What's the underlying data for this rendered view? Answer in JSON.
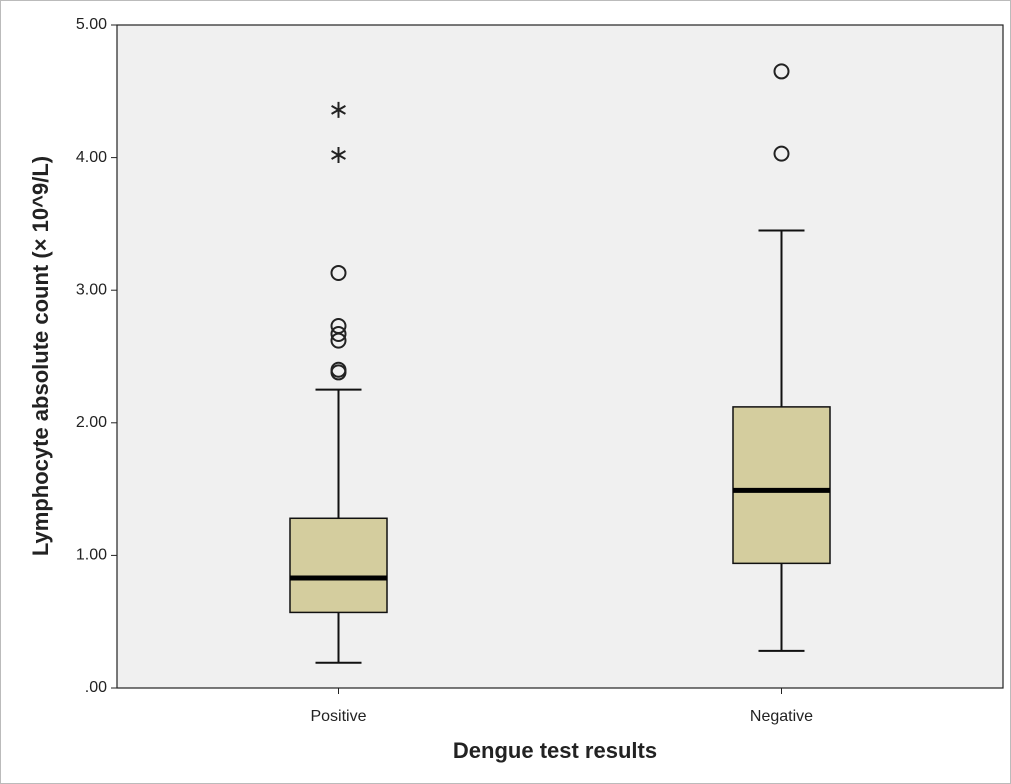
{
  "chart_data": {
    "type": "box",
    "y_label": "Lymphocyte absolute count (× 10^9/L)",
    "x_label": "Dengue test results",
    "categories": [
      "Positive",
      "Negative"
    ],
    "color": "#d4cd9e",
    "background": "#f0f0f0",
    "boxes": [
      {
        "min": 0.19,
        "q1": 0.57,
        "median": 0.83,
        "q3": 1.28,
        "max": 2.25,
        "outliers": [
          2.38,
          2.4,
          2.62,
          2.67,
          2.73,
          3.13
        ],
        "extremes": [
          4.02,
          4.36
        ]
      },
      {
        "min": 0.28,
        "q1": 0.94,
        "median": 1.49,
        "q3": 2.12,
        "max": 3.45,
        "outliers": [
          4.03,
          4.65
        ],
        "extremes": []
      }
    ],
    "ylim": [
      0,
      5
    ],
    "yticks": [
      {
        "value": 0,
        "label": ".00"
      },
      {
        "value": 1,
        "label": "1.00"
      },
      {
        "value": 2,
        "label": "2.00"
      },
      {
        "value": 3,
        "label": "3.00"
      },
      {
        "value": 4,
        "label": "4.00"
      },
      {
        "value": 5,
        "label": "5.00"
      }
    ]
  }
}
